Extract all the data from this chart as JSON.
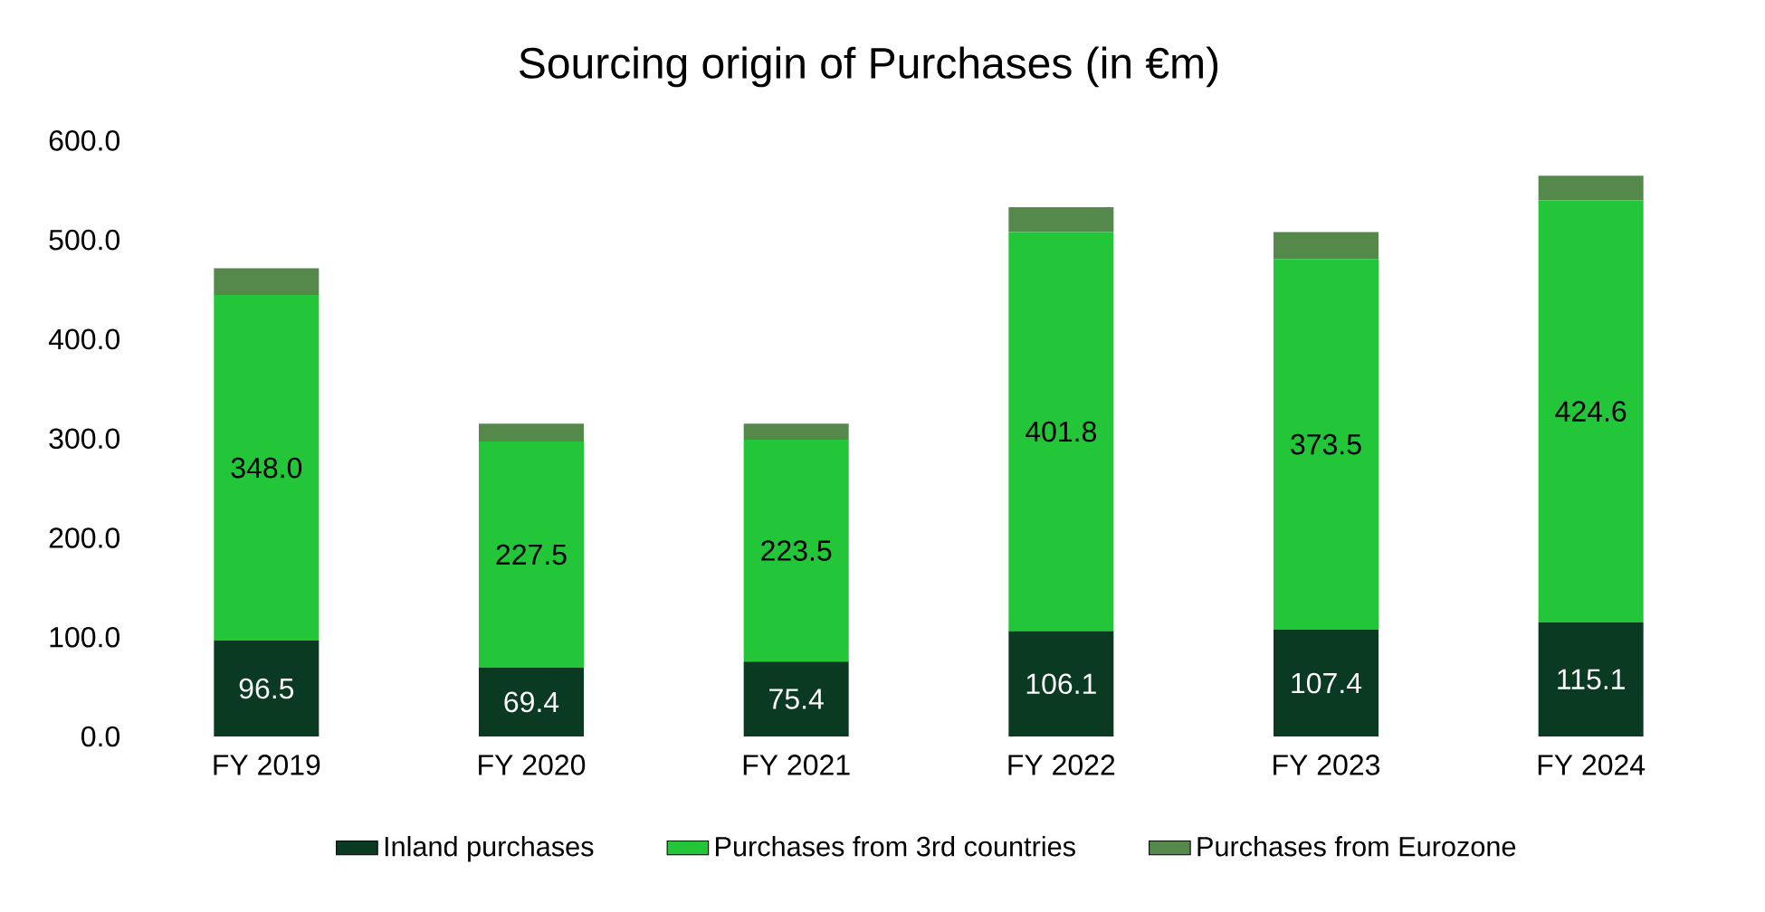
{
  "chart_data": {
    "type": "bar",
    "title": "Sourcing origin of Purchases (in €m)",
    "categories": [
      "FY 2019",
      "FY 2020",
      "FY 2021",
      "FY 2022",
      "FY 2023",
      "FY 2024"
    ],
    "stacked": true,
    "series": [
      {
        "name": "Inland purchases",
        "color": "#0b3a22",
        "values": [
          96.5,
          69.4,
          75.4,
          106.1,
          107.4,
          115.1
        ],
        "value_labels": [
          "96.5",
          "69.4",
          "75.4",
          "106.1",
          "107.4",
          "115.1"
        ]
      },
      {
        "name": "Purchases from 3rd countries",
        "color": "#22c638",
        "values": [
          348.0,
          227.5,
          223.5,
          401.8,
          373.5,
          424.6
        ],
        "value_labels": [
          "348.0",
          "227.5",
          "223.5",
          "401.8",
          "373.5",
          "424.6"
        ]
      },
      {
        "name": "Purchases from Eurozone",
        "color": "#55884b",
        "values": [
          27,
          18,
          16,
          25,
          27,
          25
        ]
      }
    ],
    "ylim": [
      0,
      600
    ],
    "yticks": [
      {
        "value": 0,
        "label": "0.0"
      },
      {
        "value": 100,
        "label": "100.0"
      },
      {
        "value": 200,
        "label": "200.0"
      },
      {
        "value": 300,
        "label": "300.0"
      },
      {
        "value": 400,
        "label": "400.0"
      },
      {
        "value": 500,
        "label": "500.0"
      },
      {
        "value": 600,
        "label": "600.0"
      }
    ],
    "grid": false,
    "legend": "bottom"
  }
}
